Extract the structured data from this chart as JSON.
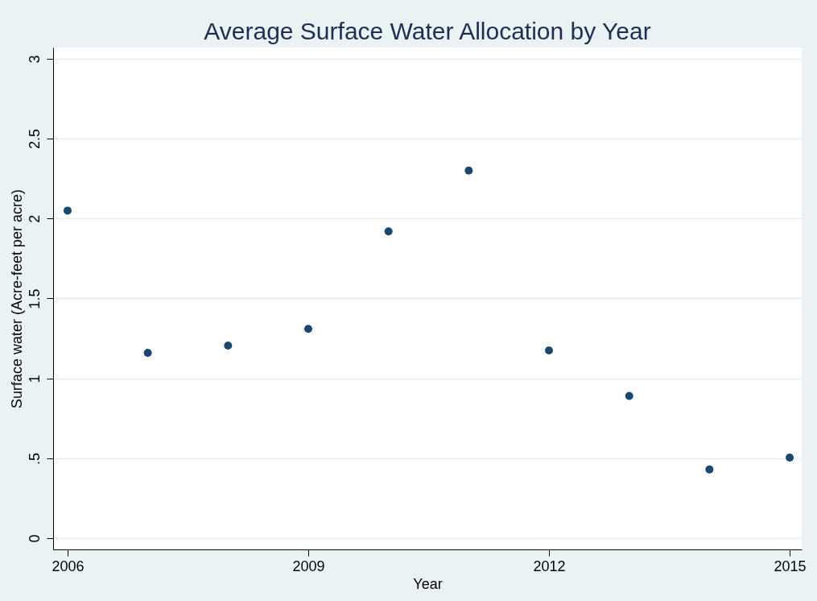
{
  "chart_data": {
    "type": "scatter",
    "title": "Average Surface Water Allocation by Year",
    "xlabel": "Year",
    "ylabel": "Surface water (Acre-feet per acre)",
    "x": [
      2006,
      2007,
      2008,
      2009,
      2010,
      2011,
      2012,
      2013,
      2014,
      2015
    ],
    "series": [
      {
        "color": "#1a476f",
        "values": [
          2.05,
          1.16,
          1.205,
          1.31,
          1.92,
          2.3,
          1.175,
          0.89,
          0.43,
          0.505
        ]
      }
    ],
    "xlim": [
      2005.82,
      2015.15
    ],
    "ylim": [
      -0.07,
      3.07
    ],
    "xticks": [
      2006,
      2009,
      2012,
      2015
    ],
    "yticks": [
      0,
      {
        "value": 0.5,
        "label": ".5"
      },
      1,
      1.5,
      2,
      2.5,
      3
    ],
    "grid": "y",
    "marker": "circle"
  }
}
